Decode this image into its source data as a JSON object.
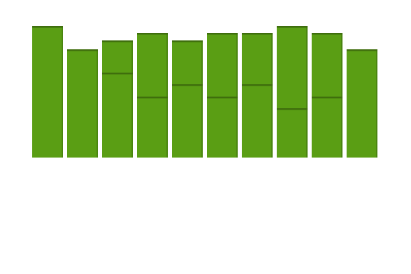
{
  "chart_data": {
    "type": "stacked_bar",
    "ylim": [
      0,
      200
    ],
    "series": [
      {
        "color": "#5a9e14",
        "values": [
          192,
          158,
          124,
          89,
          107,
          89,
          107,
          72,
          89,
          158
        ]
      },
      {
        "color": "#5a9e14",
        "values": [
          0,
          0,
          47,
          93,
          64,
          93,
          75,
          120,
          93,
          0
        ]
      }
    ]
  }
}
